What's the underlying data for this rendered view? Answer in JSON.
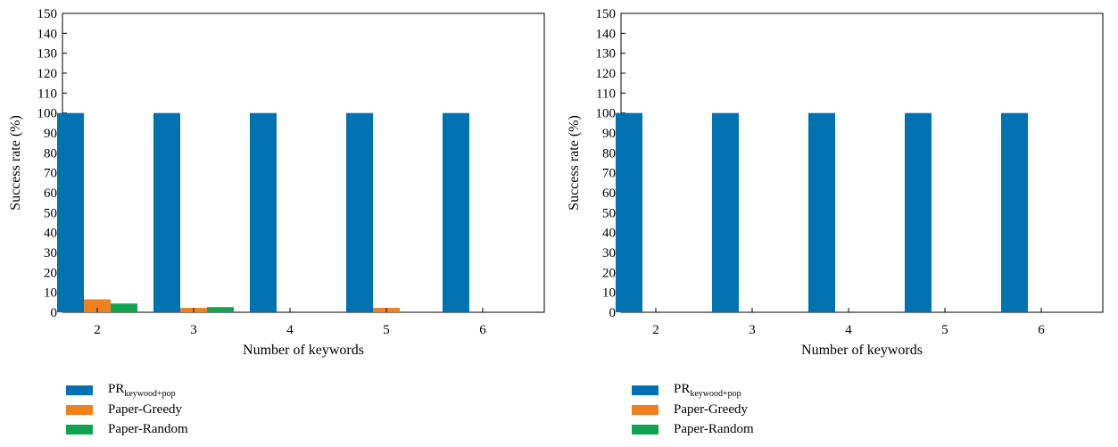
{
  "colors": {
    "pr": "#0072b2",
    "greedy": "#f07f1e",
    "random": "#0fa550"
  },
  "chart_data": [
    {
      "type": "bar",
      "categories": [
        "2",
        "3",
        "4",
        "5",
        "6"
      ],
      "xlabel": "Number of keywords",
      "ylabel": "Success rate (%)",
      "ylim": [
        0,
        150
      ],
      "yticks": [
        0,
        10,
        20,
        30,
        40,
        50,
        60,
        70,
        80,
        90,
        100,
        110,
        120,
        130,
        140,
        150
      ],
      "grid": false,
      "legend_position": "bottom-left",
      "series": [
        {
          "name": "PR",
          "name_subscript": "keywood+pop",
          "values": [
            100,
            100,
            100,
            100,
            100
          ]
        },
        {
          "name": "Paper-Greedy",
          "values": [
            6.5,
            2.2,
            0,
            2.2,
            0
          ]
        },
        {
          "name": "Paper-Random",
          "values": [
            4.4,
            2.6,
            0,
            0,
            0
          ]
        }
      ]
    },
    {
      "type": "bar",
      "categories": [
        "2",
        "3",
        "4",
        "5",
        "6"
      ],
      "xlabel": "Number of keywords",
      "ylabel": "Success rate (%)",
      "ylim": [
        0,
        150
      ],
      "yticks": [
        0,
        10,
        20,
        30,
        40,
        50,
        60,
        70,
        80,
        90,
        100,
        110,
        120,
        130,
        140,
        150
      ],
      "grid": false,
      "legend_position": "bottom-left",
      "series": [
        {
          "name": "PR",
          "name_subscript": "keywood+pop",
          "values": [
            100,
            100,
            100,
            100,
            100
          ]
        },
        {
          "name": "Paper-Greedy",
          "values": [
            0,
            0,
            0,
            0,
            0
          ]
        },
        {
          "name": "Paper-Random",
          "values": [
            0,
            0,
            0,
            0,
            0
          ]
        }
      ]
    }
  ]
}
